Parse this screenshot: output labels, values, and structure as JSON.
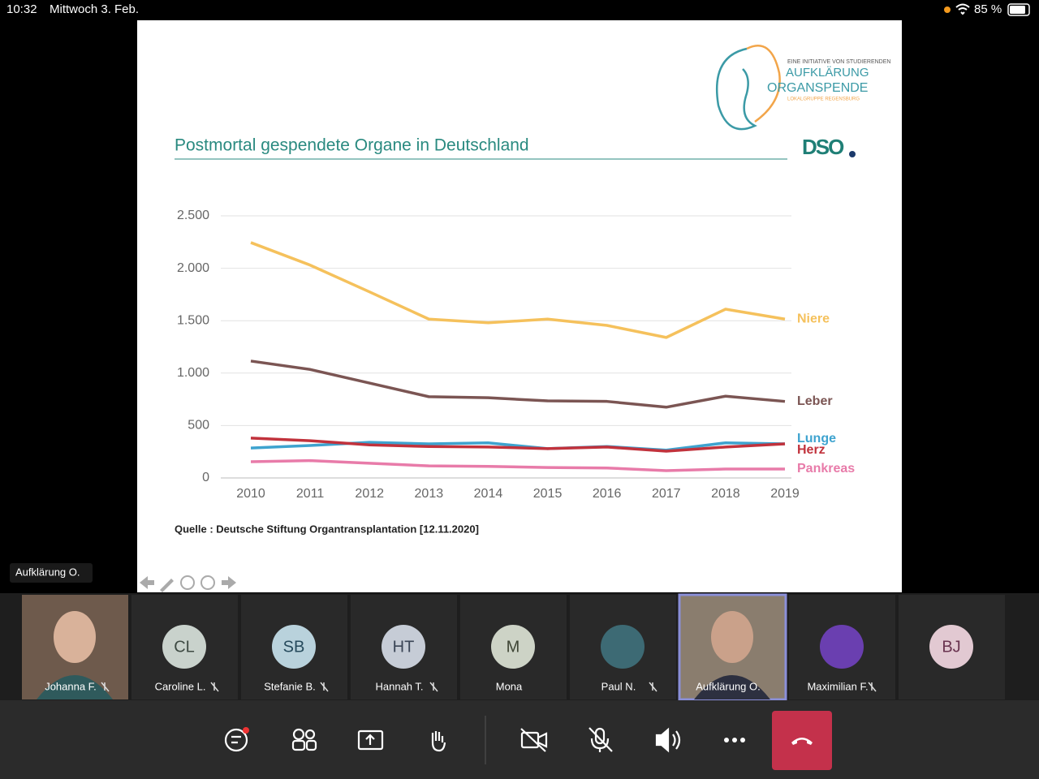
{
  "status_bar": {
    "time": "10:32",
    "date": "Mittwoch 3. Feb.",
    "battery": "85 %"
  },
  "slide": {
    "logo": {
      "tagline": "EINE INITIATIVE VON STUDIERENDEN",
      "line1": "AUFKLÄRUNG",
      "line2": "ORGANSPENDE",
      "sub": "LOKALGRUPPE REGENSBURG"
    },
    "dso": "DSO",
    "source": "Quelle : Deutsche Stiftung Organtransplantation [12.11.2020]"
  },
  "chart_data": {
    "type": "line",
    "title": "Postmortal gespendete Organe in Deutschland",
    "categories": [
      "2010",
      "2011",
      "2012",
      "2013",
      "2014",
      "2015",
      "2016",
      "2017",
      "2018",
      "2019"
    ],
    "ylim": [
      0,
      2500
    ],
    "yticks": [
      0,
      500,
      {
        "value": 1000,
        "label": "1.000"
      },
      {
        "value": 1500,
        "label": "1.500"
      },
      {
        "value": 2000,
        "label": "2.000"
      },
      {
        "value": 2500,
        "label": "2.500"
      }
    ],
    "grid": true,
    "series": [
      {
        "name": "Niere",
        "color": "#f5c15c",
        "values": [
          2245,
          2030,
          1775,
          1515,
          1480,
          1515,
          1455,
          1340,
          1610,
          1515
        ]
      },
      {
        "name": "Leber",
        "color": "#7b5553",
        "values": [
          1115,
          1035,
          905,
          775,
          765,
          735,
          730,
          675,
          780,
          730
        ]
      },
      {
        "name": "Lunge",
        "color": "#3ea3cf",
        "values": [
          285,
          310,
          340,
          325,
          335,
          280,
          300,
          265,
          335,
          325
        ]
      },
      {
        "name": "Herz",
        "color": "#c1323c",
        "values": [
          380,
          355,
          315,
          300,
          295,
          280,
          295,
          255,
          295,
          325
        ]
      },
      {
        "name": "Pankreas",
        "color": "#e87ba9",
        "values": [
          155,
          165,
          140,
          115,
          110,
          100,
          95,
          70,
          85,
          85
        ]
      }
    ]
  },
  "presenter_label": "Aufklärung O.",
  "participants": [
    {
      "name": "Johanna F."
    },
    {
      "name": "Caroline L.",
      "initials": "CL"
    },
    {
      "name": "Stefanie B.",
      "initials": "SB"
    },
    {
      "name": "Hannah T.",
      "initials": "HT"
    },
    {
      "name": "Mona",
      "initials": "M"
    },
    {
      "name": "Paul N."
    },
    {
      "name": "Aufklärung O."
    },
    {
      "name": "Maximilian F."
    },
    {
      "initials": "BJ"
    }
  ]
}
